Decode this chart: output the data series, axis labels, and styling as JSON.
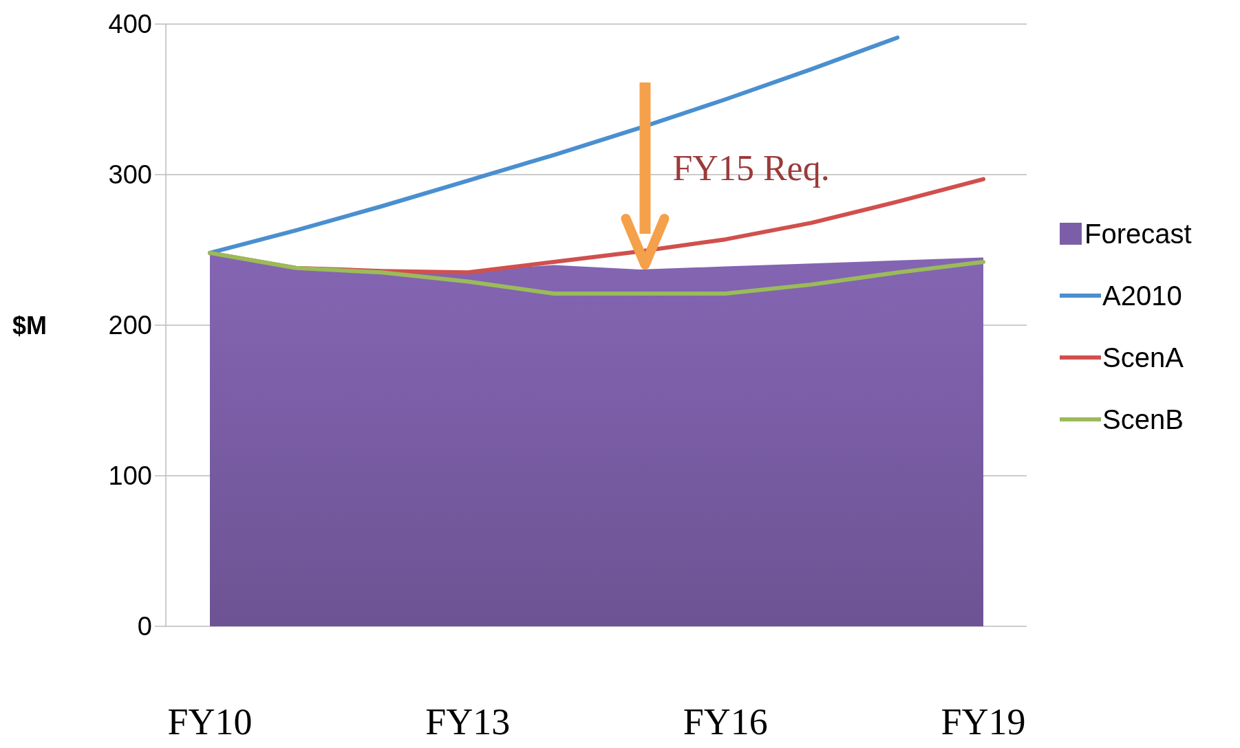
{
  "chart_data": {
    "type": "line",
    "ylabel": "$M",
    "categories": [
      "FY10",
      null,
      null,
      "FY13",
      null,
      null,
      "FY16",
      null,
      null,
      "FY19"
    ],
    "ylim": [
      0,
      400
    ],
    "yticks": [
      0,
      100,
      200,
      300,
      400
    ],
    "grid": "y",
    "legend": "right",
    "annotations": [
      "FY15 Req."
    ],
    "series": [
      {
        "name": "Forecast",
        "type": "area",
        "color": "#7b5ea7",
        "values": [
          248,
          238,
          236,
          236,
          240,
          237,
          239,
          241,
          243,
          245
        ]
      },
      {
        "name": "A2010",
        "color": "#4a8fcf",
        "values": [
          248,
          263,
          279,
          296,
          313,
          331,
          350,
          370,
          391,
          null
        ]
      },
      {
        "name": "ScenA",
        "color": "#d0504d",
        "values": [
          248,
          238,
          236,
          235,
          242,
          249,
          257,
          268,
          282,
          297
        ]
      },
      {
        "name": "ScenB",
        "color": "#9bbb59",
        "values": [
          248,
          238,
          235,
          229,
          221,
          221,
          221,
          227,
          235,
          242
        ]
      }
    ]
  }
}
